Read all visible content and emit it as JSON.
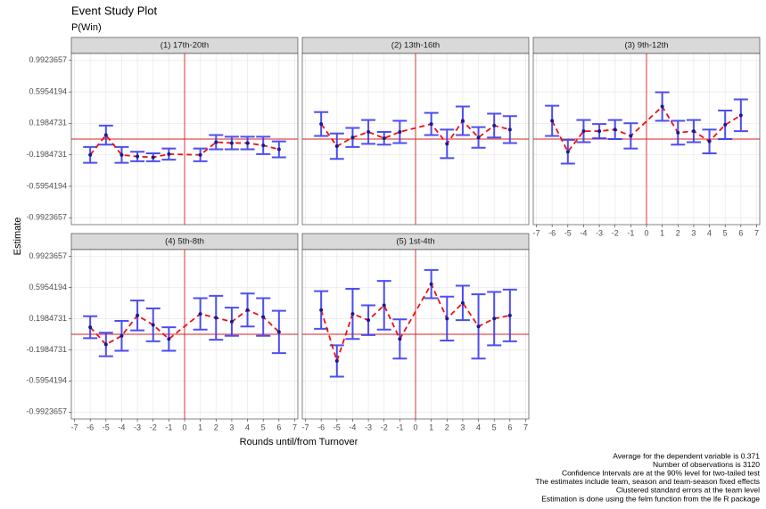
{
  "title": "Event Study Plot",
  "subtitle": "P(Win)",
  "xlabel": "Rounds until/from Turnover",
  "ylabel": "Estimate",
  "notes": [
    "Average for the dependent variable is 0.371",
    "Number of observations is 3120",
    "Confidence Intervals are at the 90% level for two-tailed test",
    "The estimates include team, season and team-season fixed effects",
    "Clustered standard errors at the team level",
    "Estimation is done using the felm function from the lfe R package"
  ],
  "chart_data": [
    {
      "type": "errorbar",
      "title": "(1) 17th-20th",
      "x": [
        -6,
        -5,
        -4,
        -3,
        -2,
        -1,
        1,
        2,
        3,
        4,
        5,
        6
      ],
      "values": [
        -0.2,
        0.05,
        -0.2,
        -0.22,
        -0.23,
        -0.19,
        -0.2,
        -0.04,
        -0.05,
        -0.05,
        -0.08,
        -0.13
      ],
      "errors": [
        0.1,
        0.12,
        0.1,
        0.06,
        0.05,
        0.07,
        0.08,
        0.09,
        0.08,
        0.08,
        0.11,
        0.1
      ],
      "xlim": [
        -7.2,
        7.2
      ],
      "ylim": [
        -1.08,
        1.08
      ],
      "xticks": [
        -7,
        -6,
        -5,
        -4,
        -3,
        -2,
        -1,
        0,
        1,
        2,
        3,
        4,
        5,
        6,
        7
      ],
      "yticks": [
        -0.9923657,
        -0.5954194,
        -0.1984731,
        0.1984731,
        0.5954194,
        0.9923657
      ],
      "point_color": "#1a1a8c",
      "bar_color": "#3b3bf0",
      "line_color": "#ee1111",
      "ref_color": "#d62020",
      "grid": true
    },
    {
      "type": "errorbar",
      "title": "(2) 13th-16th",
      "x": [
        -6,
        -5,
        -4,
        -3,
        -2,
        -1,
        1,
        2,
        3,
        4,
        5,
        6
      ],
      "values": [
        0.19,
        -0.09,
        0.02,
        0.09,
        0.01,
        0.09,
        0.19,
        -0.06,
        0.23,
        0.02,
        0.17,
        0.12
      ],
      "errors": [
        0.15,
        0.16,
        0.12,
        0.15,
        0.08,
        0.14,
        0.14,
        0.18,
        0.18,
        0.13,
        0.15,
        0.17
      ],
      "xlim": [
        -7.2,
        7.2
      ],
      "ylim": [
        -1.08,
        1.08
      ],
      "xticks": [
        -7,
        -6,
        -5,
        -4,
        -3,
        -2,
        -1,
        0,
        1,
        2,
        3,
        4,
        5,
        6,
        7
      ],
      "yticks": [
        -0.9923657,
        -0.5954194,
        -0.1984731,
        0.1984731,
        0.5954194,
        0.9923657
      ],
      "point_color": "#1a1a8c",
      "bar_color": "#3b3bf0",
      "line_color": "#ee1111",
      "ref_color": "#d62020",
      "grid": true
    },
    {
      "type": "errorbar",
      "title": "(3) 9th-12th",
      "x": [
        -6,
        -5,
        -4,
        -3,
        -2,
        -1,
        1,
        2,
        3,
        4,
        5,
        6
      ],
      "values": [
        0.23,
        -0.16,
        0.1,
        0.1,
        0.12,
        0.04,
        0.41,
        0.08,
        0.1,
        -0.03,
        0.18,
        0.3
      ],
      "errors": [
        0.19,
        0.15,
        0.14,
        0.09,
        0.12,
        0.16,
        0.18,
        0.15,
        0.14,
        0.15,
        0.18,
        0.2
      ],
      "xlim": [
        -7.2,
        7.2
      ],
      "ylim": [
        -1.08,
        1.08
      ],
      "xticks": [
        -7,
        -6,
        -5,
        -4,
        -3,
        -2,
        -1,
        0,
        1,
        2,
        3,
        4,
        5,
        6,
        7
      ],
      "yticks": [
        -0.9923657,
        -0.5954194,
        -0.1984731,
        0.1984731,
        0.5954194,
        0.9923657
      ],
      "point_color": "#1a1a8c",
      "bar_color": "#3b3bf0",
      "line_color": "#ee1111",
      "ref_color": "#d62020",
      "grid": true
    },
    {
      "type": "errorbar",
      "title": "(4) 5th-8th",
      "x": [
        -6,
        -5,
        -4,
        -3,
        -2,
        -1,
        1,
        2,
        3,
        4,
        5,
        6
      ],
      "values": [
        0.09,
        -0.13,
        -0.02,
        0.24,
        0.12,
        -0.06,
        0.26,
        0.21,
        0.16,
        0.31,
        0.22,
        0.03
      ],
      "errors": [
        0.14,
        0.15,
        0.19,
        0.19,
        0.21,
        0.15,
        0.2,
        0.28,
        0.18,
        0.21,
        0.24,
        0.27
      ],
      "xlim": [
        -7.2,
        7.2
      ],
      "ylim": [
        -1.08,
        1.08
      ],
      "xticks": [
        -7,
        -6,
        -5,
        -4,
        -3,
        -2,
        -1,
        0,
        1,
        2,
        3,
        4,
        5,
        6,
        7
      ],
      "yticks": [
        -0.9923657,
        -0.5954194,
        -0.1984731,
        0.1984731,
        0.5954194,
        0.9923657
      ],
      "point_color": "#1a1a8c",
      "bar_color": "#3b3bf0",
      "line_color": "#ee1111",
      "ref_color": "#d62020",
      "grid": true
    },
    {
      "type": "errorbar",
      "title": "(5) 1st-4th",
      "x": [
        -6,
        -5,
        -4,
        -3,
        -2,
        -1,
        1,
        2,
        3,
        4,
        5,
        6
      ],
      "values": [
        0.31,
        -0.34,
        0.26,
        0.18,
        0.37,
        -0.06,
        0.64,
        0.2,
        0.4,
        0.1,
        0.2,
        0.24
      ],
      "errors": [
        0.24,
        0.2,
        0.32,
        0.19,
        0.31,
        0.25,
        0.18,
        0.28,
        0.22,
        0.41,
        0.34,
        0.33
      ],
      "xlim": [
        -7.2,
        7.2
      ],
      "ylim": [
        -1.08,
        1.08
      ],
      "xticks": [
        -7,
        -6,
        -5,
        -4,
        -3,
        -2,
        -1,
        0,
        1,
        2,
        3,
        4,
        5,
        6,
        7
      ],
      "yticks": [
        -0.9923657,
        -0.5954194,
        -0.1984731,
        0.1984731,
        0.5954194,
        0.9923657
      ],
      "point_color": "#1a1a8c",
      "bar_color": "#3b3bf0",
      "line_color": "#ee1111",
      "ref_color": "#d62020",
      "grid": true
    }
  ]
}
